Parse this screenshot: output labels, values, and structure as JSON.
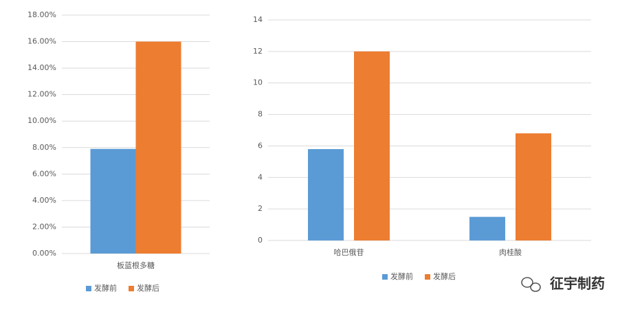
{
  "chart_data": [
    {
      "type": "bar",
      "categories": [
        "板蓝根多糖"
      ],
      "series": [
        {
          "name": "发酵前",
          "color": "#5b9bd5",
          "values": [
            7.9
          ]
        },
        {
          "name": "发酵后",
          "color": "#ed7d31",
          "values": [
            16.0
          ]
        }
      ],
      "ylim": [
        0,
        18
      ],
      "yticks": [
        {
          "value": 0,
          "label": "0.00%"
        },
        {
          "value": 2,
          "label": "2.00%"
        },
        {
          "value": 4,
          "label": "4.00%"
        },
        {
          "value": 6,
          "label": "6.00%"
        },
        {
          "value": 8,
          "label": "8.00%"
        },
        {
          "value": 10,
          "label": "10.00%"
        },
        {
          "value": 12,
          "label": "12.00%"
        },
        {
          "value": 14,
          "label": "14.00%"
        },
        {
          "value": 16,
          "label": "16.00%"
        },
        {
          "value": 18,
          "label": "18.00%"
        }
      ],
      "grid": true,
      "legend": "bottom"
    },
    {
      "type": "bar",
      "categories": [
        "哈巴俄苷",
        "肉桂酸"
      ],
      "series": [
        {
          "name": "发酵前",
          "color": "#5b9bd5",
          "values": [
            5.8,
            1.5
          ]
        },
        {
          "name": "发酵后",
          "color": "#ed7d31",
          "values": [
            12.0,
            6.8
          ]
        }
      ],
      "ylim": [
        0,
        14
      ],
      "yticks": [
        0,
        2,
        4,
        6,
        8,
        10,
        12,
        14
      ],
      "grid": true,
      "legend": "bottom"
    }
  ],
  "watermark": "征宇制药"
}
